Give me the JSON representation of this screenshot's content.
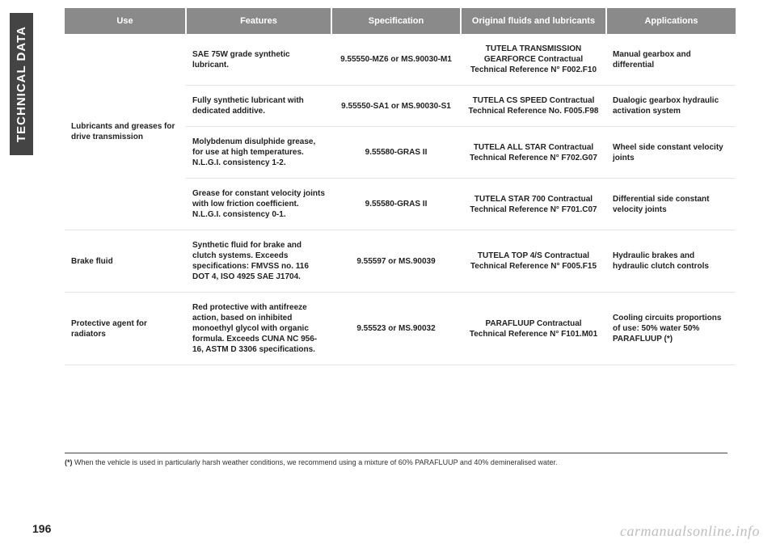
{
  "sidebar_label": "TECHNICAL DATA",
  "page_number": "196",
  "watermark": "carmanualsonline.info",
  "footnote_marker": "(*)",
  "footnote_text": "When the vehicle is used in particularly harsh weather conditions, we recommend using a mixture of 60% PARAFLUUP and 40% demineralised water.",
  "headers": {
    "use": "Use",
    "features": "Features",
    "specification": "Specification",
    "fluids": "Original fluids and lubricants",
    "applications": "Applications"
  },
  "rows": [
    {
      "use": "Lubricants and greases for drive transmission",
      "use_rowspan": 4,
      "features": "SAE 75W grade synthetic lubricant.",
      "specification": "9.55550-MZ6 or MS.90030-M1",
      "fluids": "TUTELA TRANSMISSION GEARFORCE Contractual Technical Reference N° F002.F10",
      "applications": "Manual gearbox and differential"
    },
    {
      "features": "Fully synthetic lubricant with dedicated additive.",
      "specification": "9.55550-SA1 or MS.90030-S1",
      "fluids": "TUTELA CS SPEED Contractual Technical Reference No. F005.F98",
      "applications": "Dualogic gearbox hydraulic activation system"
    },
    {
      "features": "Molybdenum disulphide grease, for use at high temperatures. N.L.G.I. consistency 1-2.",
      "specification": "9.55580-GRAS II",
      "fluids": "TUTELA ALL STAR Contractual Technical Reference N° F702.G07",
      "applications": "Wheel side constant velocity joints"
    },
    {
      "features": "Grease for constant velocity joints with low friction coefficient. N.L.G.I. consistency 0-1.",
      "specification": "9.55580-GRAS II",
      "fluids": "TUTELA STAR 700 Contractual Technical Reference N° F701.C07",
      "applications": "Differential side constant velocity joints"
    },
    {
      "use": "Brake fluid",
      "use_rowspan": 1,
      "features": "Synthetic fluid for brake and clutch systems. Exceeds specifications: FMVSS no. 116 DOT 4, ISO 4925 SAE J1704.",
      "specification": "9.55597 or MS.90039",
      "fluids": "TUTELA TOP 4/S Contractual Technical Reference N° F005.F15",
      "applications": "Hydraulic brakes and hydraulic clutch controls"
    },
    {
      "use": "Protective agent for radiators",
      "use_rowspan": 1,
      "features": "Red protective with antifreeze action, based on inhibited monoethyl glycol with organic formula. Exceeds CUNA NC 956-16, ASTM D 3306 specifications.",
      "specification": "9.55523 or MS.90032",
      "fluids": "PARAFLUUP Contractual Technical Reference N° F101.M01",
      "applications": "Cooling circuits proportions of use: 50% water 50% PARAFLUUP (*)"
    }
  ]
}
